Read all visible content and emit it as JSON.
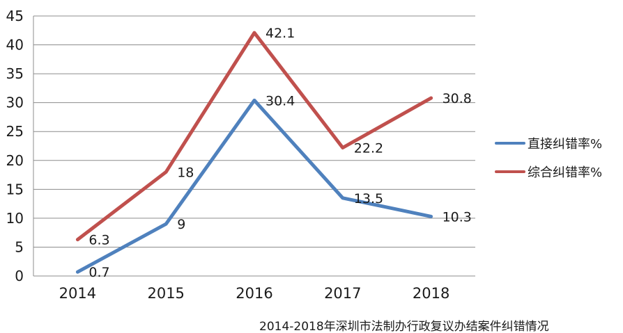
{
  "chart_data": {
    "type": "line",
    "title": "2014-2018年深圳市法制办行政复议办结案件纠错情况",
    "categories": [
      "2014",
      "2015",
      "2016",
      "2017",
      "2018"
    ],
    "series": [
      {
        "name": "直接纠错率%",
        "color": "#4F81BD",
        "values": [
          0.7,
          9,
          30.4,
          13.5,
          10.3
        ]
      },
      {
        "name": "综合纠错率%",
        "color": "#C0504D",
        "values": [
          6.3,
          18,
          42.1,
          22.2,
          30.8
        ]
      }
    ],
    "xlabel": "",
    "ylabel": "",
    "ylim": [
      0,
      45
    ],
    "ytick_step": 5,
    "grid": true,
    "legend_position": "right",
    "data_labels_shown": true
  },
  "colors": {
    "grid": "#8C8C8C",
    "axis": "#8C8C8C",
    "text": "#1a1a1a",
    "background": "#FFFFFF"
  }
}
